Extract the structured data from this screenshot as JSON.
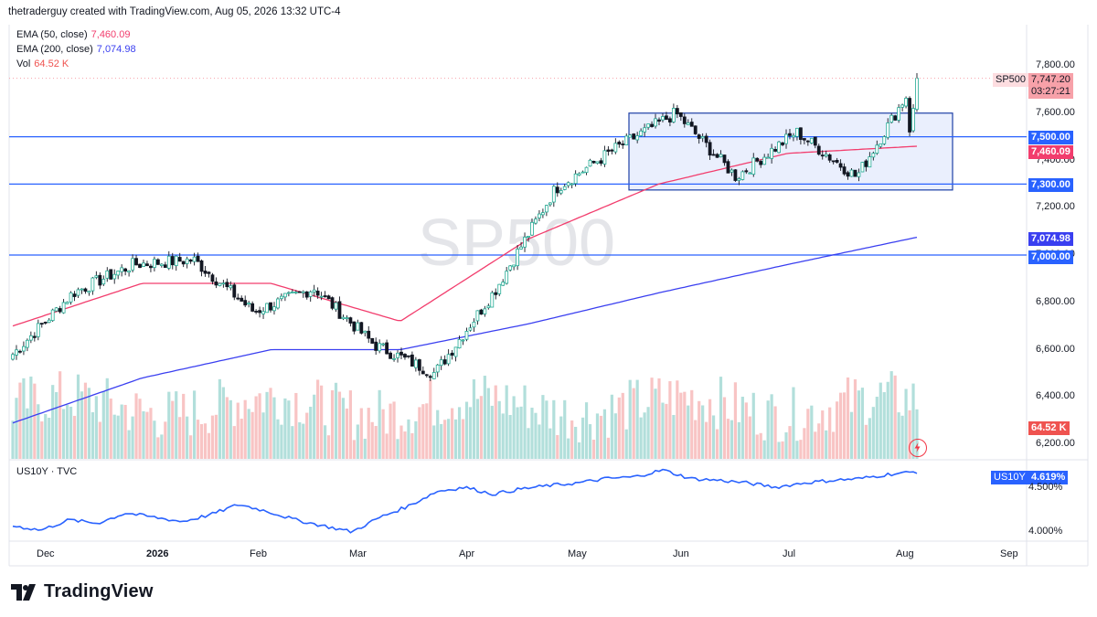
{
  "header": {
    "text": "thetraderguy created with TradingView.com, Aug 05, 2026 13:32 UTC-4"
  },
  "legend": {
    "ema50_label": "EMA (50, close)",
    "ema50_value": "7,460.09",
    "ema200_label": "EMA (200, close)",
    "ema200_value": "7,074.98",
    "vol_label": "Vol",
    "vol_value": "64.52 K"
  },
  "watermark": "SP500",
  "price_tag": {
    "symbol": "SP500",
    "price": "7,747.20",
    "countdown": "03:27:21"
  },
  "level_tags": {
    "l7500": "7,500.00",
    "ema50": "7,460.09",
    "l7300": "7,300.00",
    "ema200": "7,074.98",
    "l7000": "7,000.00",
    "vol": "64.52 K"
  },
  "sub_chart": {
    "label": "US10Y · TVC",
    "symbol": "US10Y",
    "value": "4.619%",
    "tick_top": "4.500%",
    "tick_bottom": "4.000%"
  },
  "brand": "TradingView",
  "colors": {
    "up": "#26a69a",
    "down": "#ef5350",
    "ema50": "#f23d6d",
    "ema200": "#3a3ff0",
    "levels": "#2962ff",
    "box_fill": "#e3eafc",
    "box_stroke": "#1d3fa6",
    "sub_line": "#2962ff"
  },
  "chart_data": {
    "type": "candlestick",
    "symbol": "SP500",
    "y_ticks": [
      7800,
      7600,
      7400,
      7200,
      7000,
      6800,
      6600,
      6400,
      6200
    ],
    "ylim": [
      6130,
      7880
    ],
    "x_ticks": [
      "Dec",
      "2026",
      "Feb",
      "Mar",
      "Apr",
      "May",
      "Jun",
      "Jul",
      "Aug",
      "Sep"
    ],
    "horizontal_levels": [
      7500,
      7300,
      7000
    ],
    "range_box": {
      "from": "mid-May",
      "to": "mid-Aug",
      "low": 7275,
      "high": 7600
    },
    "last_close": 7747.2,
    "closes_checkpoints": [
      {
        "t": "late Nov",
        "close": 6580
      },
      {
        "t": "early Dec",
        "close": 6840
      },
      {
        "t": "mid Jan",
        "close": 6960
      },
      {
        "t": "early Feb",
        "close": 6980
      },
      {
        "t": "mid Feb",
        "close": 6760
      },
      {
        "t": "early Mar",
        "close": 6860
      },
      {
        "t": "mid Mar",
        "close": 6620
      },
      {
        "t": "early Apr",
        "close": 6500
      },
      {
        "t": "mid Apr",
        "close": 6850
      },
      {
        "t": "early May",
        "close": 7280
      },
      {
        "t": "mid May",
        "close": 7450
      },
      {
        "t": "early Jun",
        "close": 7600
      },
      {
        "t": "mid Jun",
        "close": 7330
      },
      {
        "t": "early Jul",
        "close": 7520
      },
      {
        "t": "late Jul",
        "close": 7330
      },
      {
        "t": "early Aug",
        "close": 7747
      }
    ],
    "ema50_checkpoints": [
      {
        "t": "late Nov",
        "v": 6700
      },
      {
        "t": "mid Jan",
        "v": 6880
      },
      {
        "t": "early Mar",
        "v": 6880
      },
      {
        "t": "early Apr",
        "v": 6720
      },
      {
        "t": "mid May",
        "v": 7070
      },
      {
        "t": "mid Jun",
        "v": 7300
      },
      {
        "t": "mid Jul",
        "v": 7430
      },
      {
        "t": "early Aug",
        "v": 7460
      }
    ],
    "ema200_checkpoints": [
      {
        "t": "late Nov",
        "v": 6290
      },
      {
        "t": "mid Jan",
        "v": 6480
      },
      {
        "t": "early Mar",
        "v": 6600
      },
      {
        "t": "early Apr",
        "v": 6600
      },
      {
        "t": "mid May",
        "v": 6710
      },
      {
        "t": "mid Jun",
        "v": 6840
      },
      {
        "t": "mid Jul",
        "v": 6960
      },
      {
        "t": "early Aug",
        "v": 7075
      }
    ],
    "sub_series": {
      "name": "US10Y",
      "y_ticks": [
        4.5,
        4.0
      ],
      "last": 4.619
    }
  }
}
